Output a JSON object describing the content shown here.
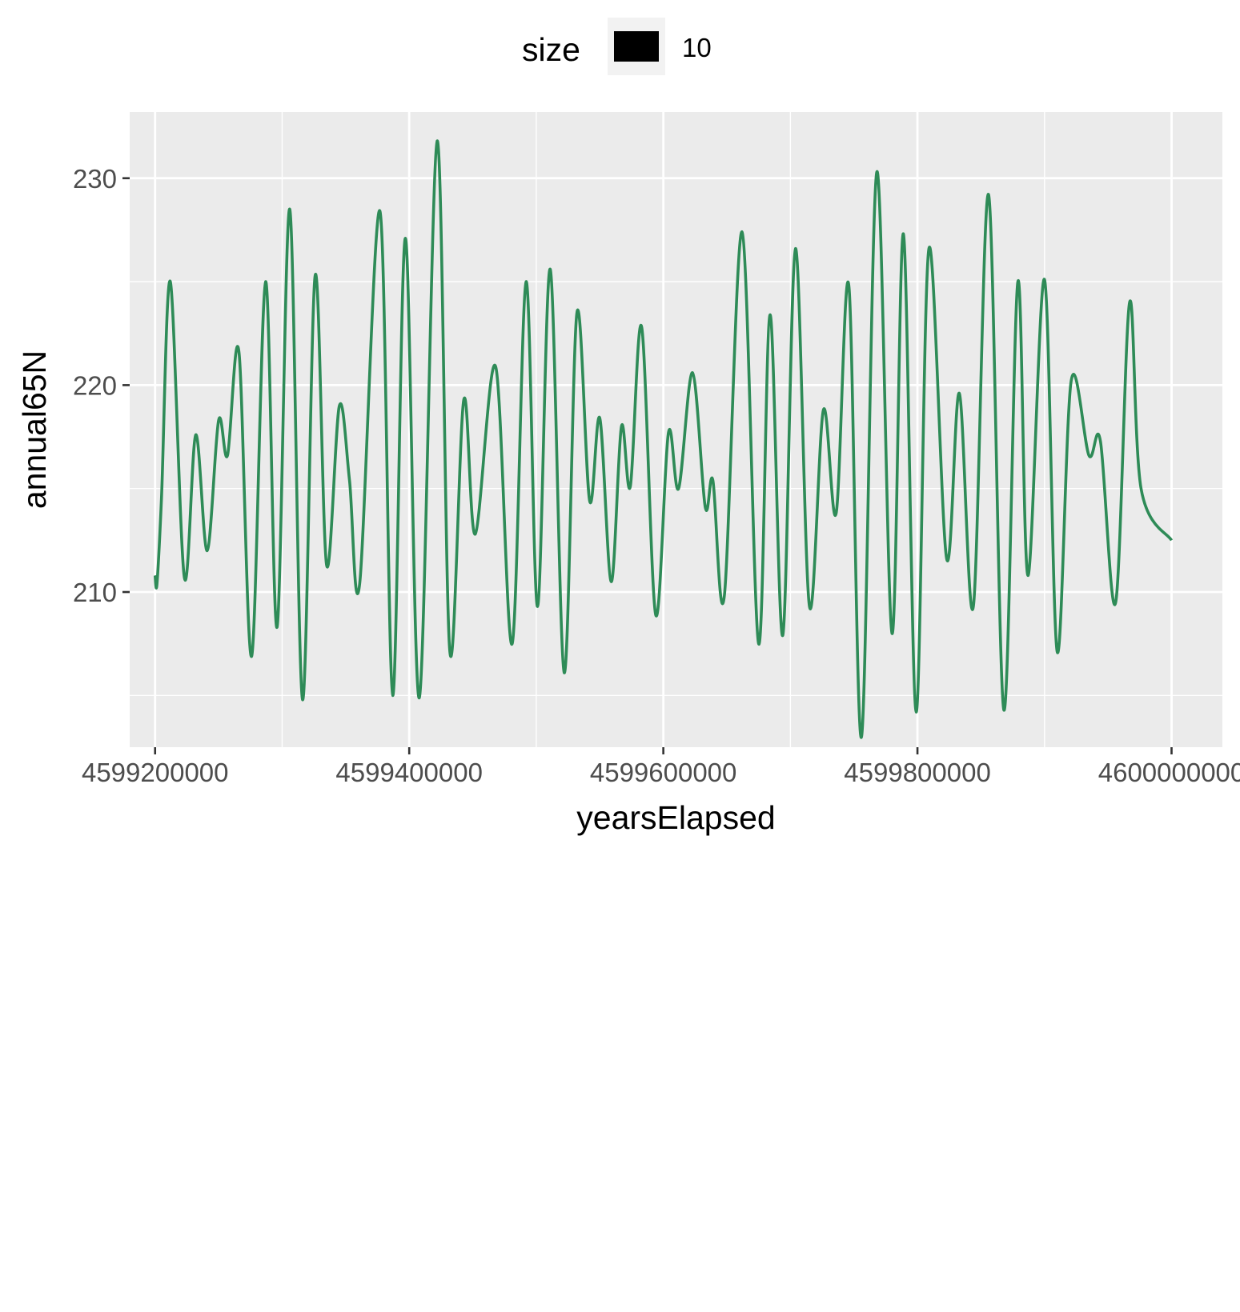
{
  "chart_data": {
    "type": "line",
    "xlabel": "yearsElapsed",
    "ylabel": "annual65N",
    "xlim": [
      4599180000,
      4600040000
    ],
    "ylim": [
      202.5,
      233.2
    ],
    "x_ticks": [
      4599200000,
      4599400000,
      4599600000,
      4599800000,
      4600000000
    ],
    "x_tick_labels": [
      "4599200000",
      "4599400000",
      "4599600000",
      "4599800000",
      "4600000000"
    ],
    "y_ticks": [
      210,
      220,
      230
    ],
    "y_tick_labels": [
      "210",
      "220",
      "230"
    ],
    "grid": true,
    "legend": {
      "position": "top",
      "title": "size",
      "entries": [
        {
          "label": "10",
          "color": "#000000"
        }
      ]
    },
    "colors": {
      "line": "#2e8b57",
      "panel": "#ebebeb",
      "grid": "#ffffff"
    },
    "series": [
      {
        "points": [
          [
            4599200000,
            210.8
          ],
          [
            4599201500,
            210.4
          ],
          [
            4599205000,
            214.5
          ],
          [
            4599212000,
            225.0
          ],
          [
            4599223000,
            210.7
          ],
          [
            4599232000,
            217.6
          ],
          [
            4599241000,
            212.0
          ],
          [
            4599250000,
            218.3
          ],
          [
            4599257000,
            216.6
          ],
          [
            4599266000,
            221.6
          ],
          [
            4599276000,
            206.9
          ],
          [
            4599287000,
            225.0
          ],
          [
            4599296000,
            208.3
          ],
          [
            4599306000,
            228.5
          ],
          [
            4599316000,
            204.8
          ],
          [
            4599326000,
            225.3
          ],
          [
            4599335000,
            211.3
          ],
          [
            4599345000,
            219.0
          ],
          [
            4599353000,
            215.4
          ],
          [
            4599361000,
            210.4
          ],
          [
            4599377000,
            228.4
          ],
          [
            4599387000,
            205.0
          ],
          [
            4599397000,
            227.1
          ],
          [
            4599408000,
            204.9
          ],
          [
            4599422000,
            231.8
          ],
          [
            4599432000,
            207.1
          ],
          [
            4599443000,
            219.3
          ],
          [
            4599452000,
            212.8
          ],
          [
            4599468000,
            220.9
          ],
          [
            4599481000,
            207.5
          ],
          [
            4599492000,
            225.0
          ],
          [
            4599501000,
            209.3
          ],
          [
            4599511000,
            225.6
          ],
          [
            4599522000,
            206.1
          ],
          [
            4599532000,
            223.5
          ],
          [
            4599542000,
            214.4
          ],
          [
            4599550000,
            218.4
          ],
          [
            4599559000,
            210.5
          ],
          [
            4599567000,
            218.0
          ],
          [
            4599574000,
            215.1
          ],
          [
            4599583000,
            222.8
          ],
          [
            4599594000,
            208.9
          ],
          [
            4599604000,
            217.7
          ],
          [
            4599612000,
            215.0
          ],
          [
            4599623000,
            220.6
          ],
          [
            4599633000,
            214.1
          ],
          [
            4599639000,
            215.4
          ],
          [
            4599648000,
            209.8
          ],
          [
            4599662000,
            227.4
          ],
          [
            4599675000,
            207.5
          ],
          [
            4599684000,
            223.4
          ],
          [
            4599694000,
            207.9
          ],
          [
            4599704000,
            226.6
          ],
          [
            4599715000,
            209.3
          ],
          [
            4599726000,
            218.8
          ],
          [
            4599736000,
            213.8
          ],
          [
            4599746000,
            224.8
          ],
          [
            4599756000,
            203.0
          ],
          [
            4599768000,
            230.3
          ],
          [
            4599780000,
            208.0
          ],
          [
            4599789000,
            227.3
          ],
          [
            4599799000,
            204.2
          ],
          [
            4599809000,
            226.6
          ],
          [
            4599823000,
            211.6
          ],
          [
            4599833000,
            219.6
          ],
          [
            4599844000,
            209.3
          ],
          [
            4599856000,
            229.2
          ],
          [
            4599868000,
            204.3
          ],
          [
            4599879000,
            225.0
          ],
          [
            4599887000,
            210.8
          ],
          [
            4599900000,
            225.1
          ],
          [
            4599910000,
            207.1
          ],
          [
            4599921000,
            220.2
          ],
          [
            4599935000,
            216.6
          ],
          [
            4599944000,
            217.3
          ],
          [
            4599956000,
            209.5
          ],
          [
            4599967000,
            224.0
          ],
          [
            4599976000,
            215.0
          ],
          [
            4600000000,
            212.5
          ]
        ]
      }
    ]
  }
}
